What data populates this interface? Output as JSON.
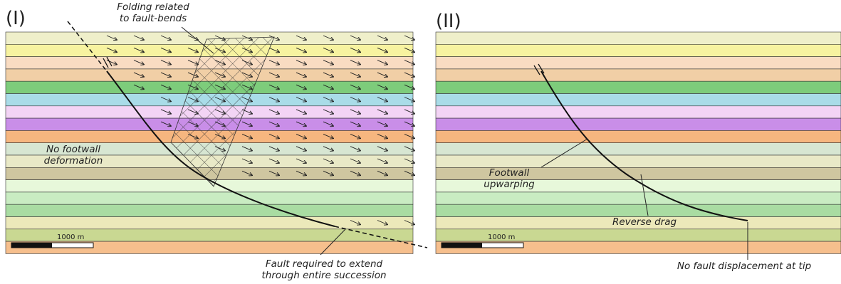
{
  "panels": [
    {
      "label": "(I)",
      "scale_bar": "1000 m",
      "annotations": {
        "folding": [
          "Folding related",
          "to fault-bends"
        ],
        "footwall": [
          "No footwall",
          "deformation"
        ],
        "fault": [
          "Fault required to extend",
          "through entire succession"
        ]
      }
    },
    {
      "label": "(II)",
      "scale_bar": "1000 m",
      "annotations": {
        "upwarping": [
          "Footwall",
          "upwarping"
        ],
        "drag": "Reverse drag",
        "tip": "No fault displacement at tip"
      }
    }
  ]
}
